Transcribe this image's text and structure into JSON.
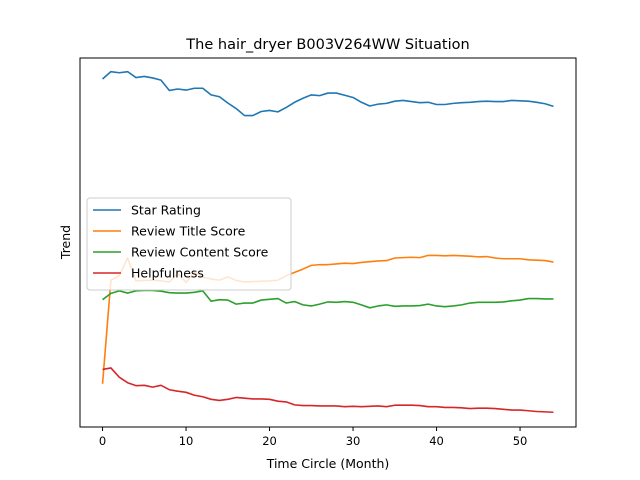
{
  "chart_data": {
    "type": "line",
    "title": "The hair_dryer B003V264WW Situation",
    "xlabel": "Time Circle (Month)",
    "ylabel": "Trend",
    "xlim": [
      -2.7,
      56.7
    ],
    "ylim": [
      0,
      1
    ],
    "xticks": [
      0,
      10,
      20,
      30,
      40,
      50
    ],
    "yticks_visible": false,
    "grid": false,
    "legend_position": "center-left",
    "series": [
      {
        "name": "Star Rating",
        "color": "#1f77b4",
        "x": [
          0,
          1,
          2,
          3,
          4,
          5,
          6,
          7,
          8,
          9,
          10,
          11,
          12,
          13,
          14,
          15,
          16,
          17,
          18,
          19,
          20,
          21,
          22,
          23,
          24,
          25,
          26,
          27,
          28,
          29,
          30,
          31,
          32,
          33,
          34,
          35,
          36,
          37,
          38,
          39,
          40,
          41,
          42,
          43,
          44,
          45,
          46,
          47,
          48,
          49,
          50,
          51,
          52,
          53,
          54
        ],
        "values": [
          0.943,
          0.963,
          0.96,
          0.963,
          0.947,
          0.95,
          0.946,
          0.94,
          0.912,
          0.916,
          0.913,
          0.918,
          0.918,
          0.9,
          0.895,
          0.878,
          0.863,
          0.844,
          0.844,
          0.855,
          0.858,
          0.854,
          0.866,
          0.88,
          0.891,
          0.9,
          0.898,
          0.905,
          0.905,
          0.899,
          0.893,
          0.88,
          0.87,
          0.875,
          0.877,
          0.883,
          0.885,
          0.882,
          0.879,
          0.88,
          0.874,
          0.874,
          0.877,
          0.879,
          0.88,
          0.882,
          0.883,
          0.882,
          0.882,
          0.885,
          0.884,
          0.883,
          0.88,
          0.876,
          0.869
        ]
      },
      {
        "name": "Review Title Score",
        "color": "#ff7f0e",
        "x": [
          0,
          1,
          2,
          3,
          4,
          5,
          6,
          7,
          8,
          9,
          10,
          11,
          12,
          13,
          14,
          15,
          16,
          17,
          18,
          19,
          20,
          21,
          22,
          23,
          24,
          25,
          26,
          27,
          28,
          29,
          30,
          31,
          32,
          33,
          34,
          35,
          36,
          37,
          38,
          39,
          40,
          41,
          42,
          43,
          44,
          45,
          46,
          47,
          48,
          49,
          50,
          51,
          52,
          53,
          54
        ],
        "values": [
          0.117,
          0.398,
          0.41,
          0.458,
          0.396,
          0.397,
          0.398,
          0.396,
          0.393,
          0.416,
          0.392,
          0.42,
          0.406,
          0.401,
          0.398,
          0.407,
          0.397,
          0.393,
          0.394,
          0.395,
          0.396,
          0.398,
          0.41,
          0.419,
          0.428,
          0.438,
          0.44,
          0.44,
          0.442,
          0.444,
          0.443,
          0.446,
          0.448,
          0.45,
          0.451,
          0.458,
          0.459,
          0.46,
          0.459,
          0.465,
          0.465,
          0.464,
          0.465,
          0.464,
          0.463,
          0.461,
          0.462,
          0.458,
          0.456,
          0.456,
          0.456,
          0.453,
          0.452,
          0.451,
          0.447
        ]
      },
      {
        "name": "Review Content Score",
        "color": "#2ca02c",
        "x": [
          0,
          1,
          2,
          3,
          4,
          5,
          6,
          7,
          8,
          9,
          10,
          11,
          12,
          13,
          14,
          15,
          16,
          17,
          18,
          19,
          20,
          21,
          22,
          23,
          24,
          25,
          26,
          27,
          28,
          29,
          30,
          31,
          32,
          33,
          34,
          35,
          36,
          37,
          38,
          39,
          40,
          41,
          42,
          43,
          44,
          45,
          46,
          47,
          48,
          49,
          50,
          51,
          52,
          53,
          54
        ],
        "values": [
          0.345,
          0.362,
          0.369,
          0.363,
          0.369,
          0.37,
          0.37,
          0.368,
          0.364,
          0.363,
          0.363,
          0.365,
          0.369,
          0.341,
          0.345,
          0.344,
          0.333,
          0.336,
          0.336,
          0.344,
          0.346,
          0.348,
          0.336,
          0.34,
          0.331,
          0.328,
          0.333,
          0.339,
          0.338,
          0.34,
          0.338,
          0.331,
          0.323,
          0.328,
          0.331,
          0.327,
          0.328,
          0.328,
          0.329,
          0.333,
          0.328,
          0.326,
          0.328,
          0.331,
          0.336,
          0.338,
          0.338,
          0.338,
          0.339,
          0.342,
          0.344,
          0.348,
          0.348,
          0.347,
          0.347
        ]
      },
      {
        "name": "Helpfulness",
        "color": "#d62728",
        "x": [
          0,
          1,
          2,
          3,
          4,
          5,
          6,
          7,
          8,
          9,
          10,
          11,
          12,
          13,
          14,
          15,
          16,
          17,
          18,
          19,
          20,
          21,
          22,
          23,
          24,
          25,
          26,
          27,
          28,
          29,
          30,
          31,
          32,
          33,
          34,
          35,
          36,
          37,
          38,
          39,
          40,
          41,
          42,
          43,
          44,
          45,
          46,
          47,
          48,
          49,
          50,
          51,
          52,
          53,
          54
        ],
        "values": [
          0.156,
          0.16,
          0.135,
          0.12,
          0.112,
          0.113,
          0.108,
          0.113,
          0.101,
          0.097,
          0.094,
          0.086,
          0.082,
          0.075,
          0.072,
          0.075,
          0.08,
          0.078,
          0.076,
          0.076,
          0.075,
          0.07,
          0.068,
          0.06,
          0.058,
          0.058,
          0.057,
          0.057,
          0.057,
          0.055,
          0.056,
          0.055,
          0.056,
          0.057,
          0.055,
          0.059,
          0.059,
          0.059,
          0.058,
          0.055,
          0.055,
          0.053,
          0.053,
          0.052,
          0.05,
          0.051,
          0.051,
          0.05,
          0.048,
          0.046,
          0.046,
          0.044,
          0.042,
          0.041,
          0.04
        ]
      }
    ]
  }
}
